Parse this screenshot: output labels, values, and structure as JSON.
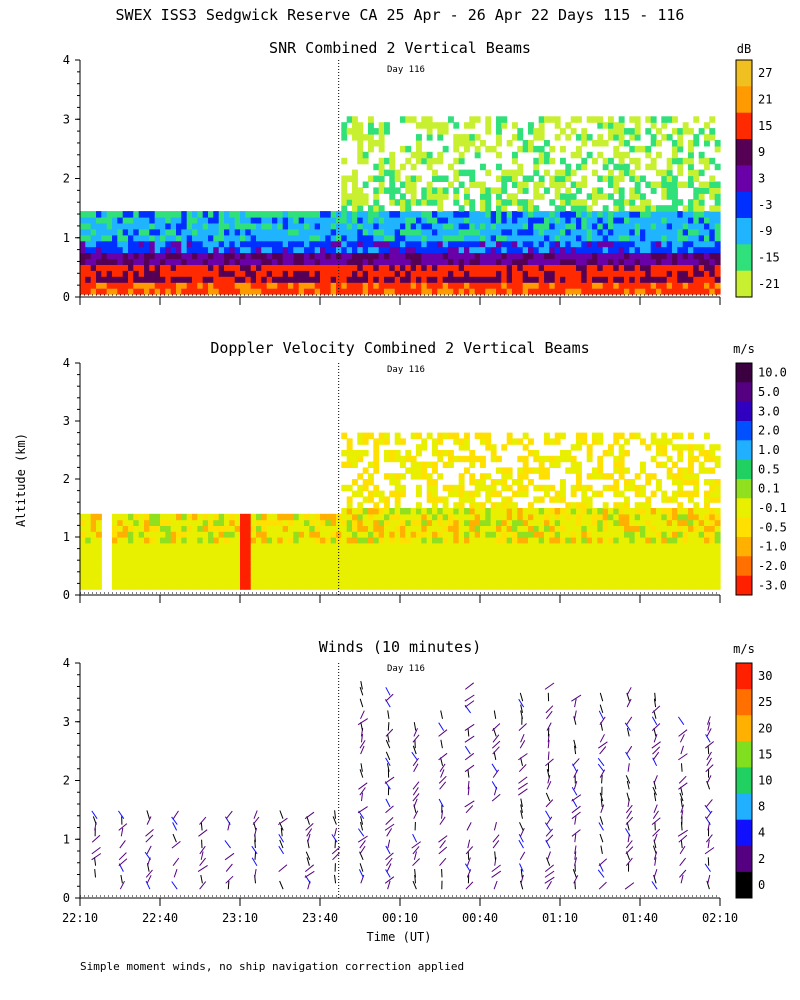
{
  "title": "SWEX ISS3 Sedgwick Reserve CA  25 Apr - 26 Apr 22 Days 115 - 116",
  "xlabel": "Time (UT)",
  "ylabel": "Altitude (km)",
  "footnote": "Simple moment winds, no ship navigation correction applied",
  "day_marker_label": "Day 116",
  "x_ticks": [
    "22:10",
    "22:40",
    "23:10",
    "23:40",
    "00:10",
    "00:40",
    "01:10",
    "01:40",
    "02:10"
  ],
  "y_ticks": [
    "0",
    "1",
    "2",
    "3",
    "4"
  ],
  "chart_data": [
    {
      "type": "heatmap",
      "title": "SNR Combined 2 Vertical Beams",
      "units": "dB",
      "xlabel": "Time (UT)",
      "ylabel": "Altitude (km)",
      "x_range_minutes": [
        0,
        240
      ],
      "ylim": [
        0,
        4
      ],
      "day_change_minutes": 97,
      "colorbar": {
        "labels": [
          "27",
          "21",
          "15",
          "9",
          "3",
          "-3",
          "-9",
          "-15",
          "-21"
        ],
        "colors": [
          "#f0c020",
          "#ff9a00",
          "#ff2a00",
          "#550055",
          "#6a00a8",
          "#0030ff",
          "#20b4ff",
          "#30e07a",
          "#c8f030"
        ]
      },
      "coverage": [
        {
          "from_min": 0,
          "to_min": 97,
          "top_km": 1.4
        },
        {
          "from_min": 97,
          "to_min": 240,
          "top_km": 3.0
        }
      ],
      "layers_km": [
        {
          "from": 0.05,
          "to": 0.2,
          "value_db": 18
        },
        {
          "from": 0.2,
          "to": 0.35,
          "value_db": 12
        },
        {
          "from": 0.35,
          "to": 0.5,
          "value_db": 21
        },
        {
          "from": 0.5,
          "to": 0.65,
          "value_db": 5
        },
        {
          "from": 0.65,
          "to": 0.9,
          "value_db": -5
        },
        {
          "from": 0.9,
          "to": 1.4,
          "value_db": -10
        }
      ]
    },
    {
      "type": "heatmap",
      "title": "Doppler Velocity Combined 2 Vertical Beams",
      "units": "m/s",
      "xlabel": "Time (UT)",
      "ylabel": "Altitude (km)",
      "x_range_minutes": [
        0,
        240
      ],
      "ylim": [
        0,
        4
      ],
      "day_change_minutes": 97,
      "colorbar": {
        "labels": [
          "10.0",
          "5.0",
          "3.0",
          "2.0",
          "1.0",
          "0.5",
          "0.1",
          "-0.1",
          "-0.5",
          "-1.0",
          "-2.0",
          "-3.0"
        ],
        "colors": [
          "#3a0040",
          "#550080",
          "#3000c0",
          "#0050ff",
          "#20b0ff",
          "#20d060",
          "#90e020",
          "#e8f000",
          "#ffe000",
          "#ffb000",
          "#ff7000",
          "#ff2000"
        ]
      },
      "coverage": [
        {
          "from_min": 0,
          "to_min": 97,
          "top_km": 1.4
        },
        {
          "from_min": 97,
          "to_min": 240,
          "top_km": 2.8
        }
      ],
      "dominant_value_ms": -0.1
    },
    {
      "type": "scatter",
      "title": "Winds (10 minutes)",
      "units": "m/s",
      "xlabel": "Time (UT)",
      "ylabel": "Altitude (km)",
      "x_range_minutes": [
        0,
        240
      ],
      "ylim": [
        0,
        4
      ],
      "day_change_minutes": 97,
      "colorbar": {
        "labels": [
          "30",
          "25",
          "20",
          "15",
          "10",
          "8",
          "4",
          "2",
          "0"
        ],
        "colors": [
          "#ff2000",
          "#ff7000",
          "#ffb000",
          "#80e020",
          "#20d060",
          "#20b0ff",
          "#1010ff",
          "#550080",
          "#000000"
        ]
      },
      "profile_times_minutes": [
        5,
        15,
        25,
        35,
        45,
        55,
        65,
        75,
        85,
        95,
        105,
        115,
        125,
        135,
        145,
        155,
        165,
        175,
        185,
        195,
        205,
        215,
        225,
        235
      ],
      "profile_top_km": [
        1.4,
        1.4,
        1.4,
        1.4,
        1.4,
        1.4,
        1.4,
        1.4,
        1.4,
        1.4,
        3.6,
        3.5,
        3.0,
        3.2,
        3.6,
        3.1,
        3.5,
        3.6,
        3.4,
        3.4,
        3.6,
        3.5,
        3.0,
        3.0
      ],
      "note": "10-minute wind barbs; speed color coded"
    }
  ]
}
